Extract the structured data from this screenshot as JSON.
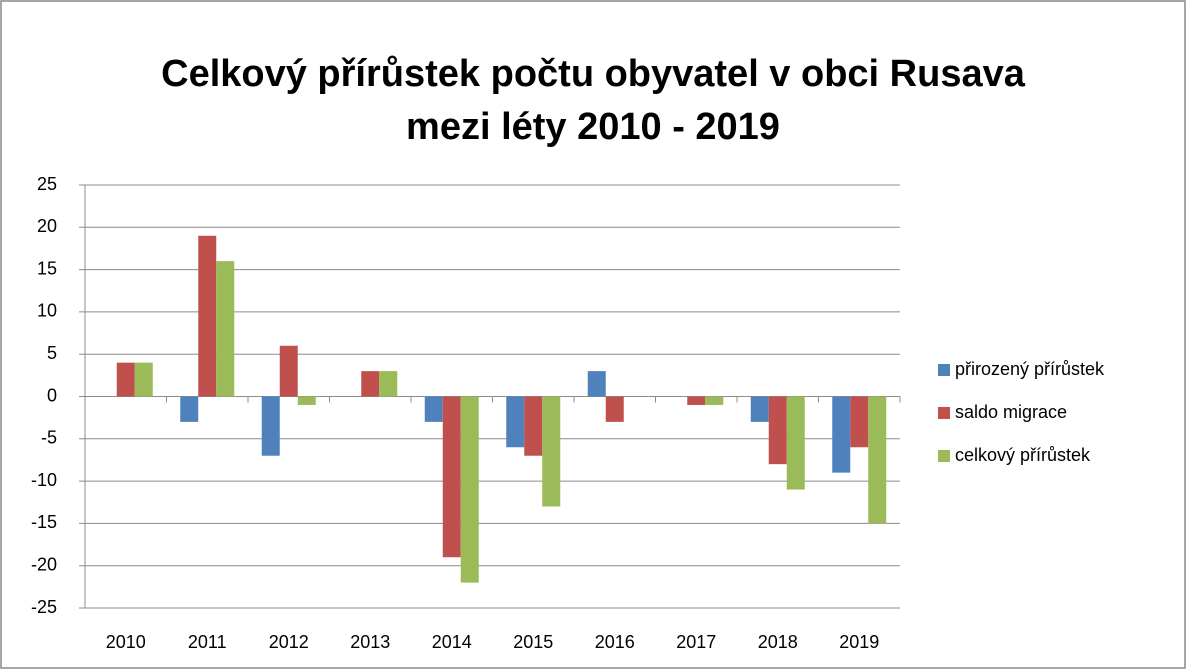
{
  "chart_data": {
    "type": "bar",
    "title": [
      "Celkový přírůstek počtu obyvatel v obci Rusava",
      "mezi léty 2010 - 2019"
    ],
    "categories": [
      "2010",
      "2011",
      "2012",
      "2013",
      "2014",
      "2015",
      "2016",
      "2017",
      "2018",
      "2019"
    ],
    "series": [
      {
        "name": "přirozený přírůstek",
        "color": "#4f81bd",
        "values": [
          0,
          -3,
          -7,
          0,
          -3,
          -6,
          3,
          0,
          -3,
          -9
        ]
      },
      {
        "name": "saldo migrace",
        "color": "#c0504d",
        "values": [
          4,
          19,
          6,
          3,
          -19,
          -7,
          -3,
          -1,
          -8,
          -6
        ]
      },
      {
        "name": "celkový přírůstek",
        "color": "#9bbb59",
        "values": [
          4,
          16,
          -1,
          3,
          -22,
          -13,
          0,
          -1,
          -11,
          -15
        ]
      }
    ],
    "ylim": [
      -25,
      25
    ],
    "yticks": [
      -25,
      -20,
      -15,
      -10,
      -5,
      0,
      5,
      10,
      15,
      20,
      25
    ],
    "grid": true,
    "legend": "right"
  }
}
